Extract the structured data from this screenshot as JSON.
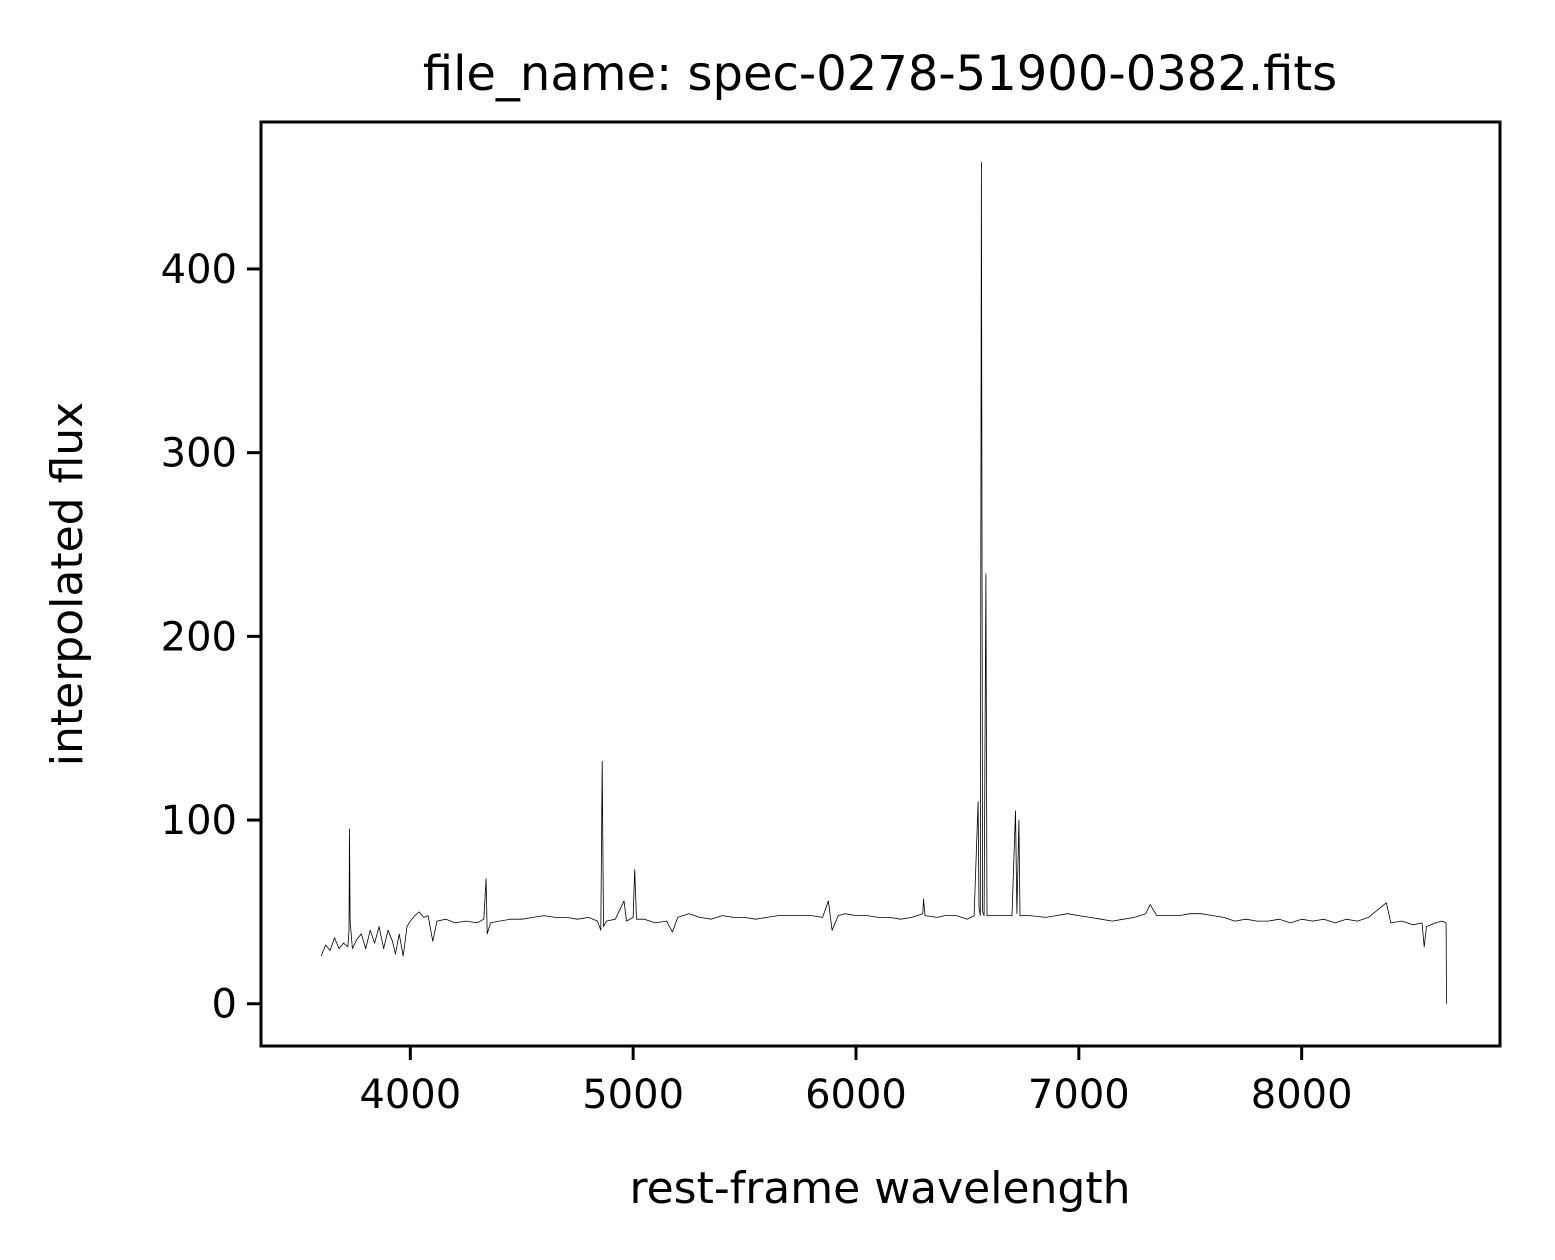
{
  "chart_data": {
    "type": "line",
    "title": "file_name: spec-0278-51900-0382.fits",
    "xlabel": "rest-frame wavelength",
    "ylabel": "interpolated flux",
    "xlim": [
      3330,
      8890
    ],
    "ylim": [
      -23,
      480
    ],
    "xticks": [
      4000,
      5000,
      6000,
      7000,
      8000
    ],
    "yticks": [
      0,
      100,
      200,
      300,
      400
    ],
    "grid": false,
    "legend": "none",
    "line_color": "#000000",
    "series": [
      {
        "name": "",
        "points": [
          [
            3600,
            26
          ],
          [
            3620,
            32
          ],
          [
            3640,
            29
          ],
          [
            3660,
            36
          ],
          [
            3680,
            30
          ],
          [
            3700,
            33
          ],
          [
            3720,
            31
          ],
          [
            3725,
            40
          ],
          [
            3727,
            95
          ],
          [
            3730,
            45
          ],
          [
            3740,
            30
          ],
          [
            3760,
            35
          ],
          [
            3780,
            38
          ],
          [
            3800,
            30
          ],
          [
            3820,
            40
          ],
          [
            3840,
            33
          ],
          [
            3860,
            42
          ],
          [
            3880,
            30
          ],
          [
            3900,
            40
          ],
          [
            3920,
            34
          ],
          [
            3933,
            27
          ],
          [
            3950,
            38
          ],
          [
            3968,
            26
          ],
          [
            3985,
            42
          ],
          [
            4000,
            45
          ],
          [
            4020,
            48
          ],
          [
            4040,
            50
          ],
          [
            4060,
            47
          ],
          [
            4080,
            48
          ],
          [
            4101,
            34
          ],
          [
            4120,
            45
          ],
          [
            4160,
            46
          ],
          [
            4200,
            44
          ],
          [
            4250,
            45
          ],
          [
            4300,
            44
          ],
          [
            4330,
            46
          ],
          [
            4340,
            68
          ],
          [
            4345,
            38
          ],
          [
            4360,
            44
          ],
          [
            4400,
            45
          ],
          [
            4450,
            46
          ],
          [
            4500,
            46
          ],
          [
            4550,
            47
          ],
          [
            4600,
            48
          ],
          [
            4650,
            47
          ],
          [
            4700,
            47
          ],
          [
            4750,
            46
          ],
          [
            4800,
            47
          ],
          [
            4840,
            45
          ],
          [
            4855,
            40
          ],
          [
            4861,
            132
          ],
          [
            4867,
            42
          ],
          [
            4880,
            45
          ],
          [
            4920,
            46
          ],
          [
            4959,
            56
          ],
          [
            4970,
            45
          ],
          [
            5000,
            47
          ],
          [
            5007,
            73
          ],
          [
            5015,
            46
          ],
          [
            5050,
            46
          ],
          [
            5100,
            44
          ],
          [
            5150,
            45
          ],
          [
            5176,
            39
          ],
          [
            5200,
            47
          ],
          [
            5250,
            49
          ],
          [
            5300,
            47
          ],
          [
            5350,
            46
          ],
          [
            5400,
            48
          ],
          [
            5450,
            47
          ],
          [
            5500,
            47
          ],
          [
            5550,
            46
          ],
          [
            5600,
            47
          ],
          [
            5650,
            48
          ],
          [
            5700,
            48
          ],
          [
            5750,
            48
          ],
          [
            5800,
            48
          ],
          [
            5850,
            47
          ],
          [
            5876,
            56
          ],
          [
            5893,
            40
          ],
          [
            5920,
            48
          ],
          [
            5950,
            49
          ],
          [
            6000,
            48
          ],
          [
            6050,
            48
          ],
          [
            6100,
            47
          ],
          [
            6150,
            47
          ],
          [
            6200,
            46
          ],
          [
            6250,
            47
          ],
          [
            6300,
            49
          ],
          [
            6303,
            57
          ],
          [
            6310,
            48
          ],
          [
            6364,
            47
          ],
          [
            6400,
            48
          ],
          [
            6450,
            48
          ],
          [
            6500,
            46
          ],
          [
            6530,
            48
          ],
          [
            6548,
            110
          ],
          [
            6552,
            52
          ],
          [
            6558,
            48
          ],
          [
            6563,
            458
          ],
          [
            6568,
            50
          ],
          [
            6575,
            48
          ],
          [
            6583,
            234
          ],
          [
            6588,
            48
          ],
          [
            6620,
            48
          ],
          [
            6650,
            48
          ],
          [
            6700,
            48
          ],
          [
            6716,
            105
          ],
          [
            6722,
            49
          ],
          [
            6731,
            100
          ],
          [
            6736,
            48
          ],
          [
            6780,
            48
          ],
          [
            6850,
            47
          ],
          [
            6900,
            48
          ],
          [
            6950,
            49
          ],
          [
            7000,
            48
          ],
          [
            7050,
            47
          ],
          [
            7100,
            46
          ],
          [
            7150,
            45
          ],
          [
            7200,
            46
          ],
          [
            7250,
            47
          ],
          [
            7300,
            49
          ],
          [
            7320,
            54
          ],
          [
            7350,
            48
          ],
          [
            7400,
            48
          ],
          [
            7450,
            48
          ],
          [
            7500,
            49
          ],
          [
            7550,
            49
          ],
          [
            7600,
            48
          ],
          [
            7650,
            47
          ],
          [
            7700,
            45
          ],
          [
            7750,
            46
          ],
          [
            7800,
            45
          ],
          [
            7850,
            45
          ],
          [
            7900,
            46
          ],
          [
            7950,
            44
          ],
          [
            8000,
            46
          ],
          [
            8050,
            45
          ],
          [
            8100,
            46
          ],
          [
            8150,
            44
          ],
          [
            8200,
            46
          ],
          [
            8250,
            45
          ],
          [
            8300,
            47
          ],
          [
            8350,
            52
          ],
          [
            8380,
            55
          ],
          [
            8400,
            44
          ],
          [
            8450,
            45
          ],
          [
            8500,
            43
          ],
          [
            8540,
            44
          ],
          [
            8550,
            31
          ],
          [
            8560,
            42
          ],
          [
            8600,
            44
          ],
          [
            8630,
            45
          ],
          [
            8648,
            44
          ],
          [
            8650,
            0
          ]
        ]
      }
    ]
  }
}
